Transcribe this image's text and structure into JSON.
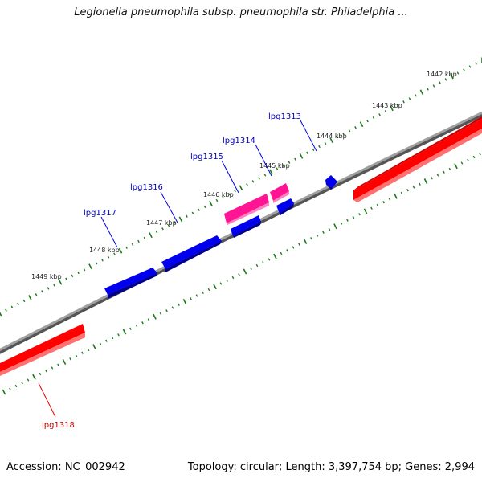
{
  "title": "Legionella pneumophila subsp. pneumophila str. Philadelphia ...",
  "footer": {
    "accession": "Accession: NC_002942",
    "summary": "Topology: circular; Length: 3,397,754 bp; Genes: 2,994"
  },
  "colors": {
    "backbone": "#808080",
    "tick": "#1a7a1a",
    "gene_blue": "#0000ee",
    "gene_pink": "#ff1493",
    "gene_red": "#ff0000",
    "label_blue": "#0000bb",
    "label_red": "#cc0000"
  },
  "ticks": [
    "1442 kbp",
    "1443 kbp",
    "1444 kbp",
    "1445 kbp",
    "1446 kbp",
    "1447 kbp",
    "1448 kbp",
    "1449 kbp"
  ],
  "genes": [
    {
      "label": "lpg1313",
      "color": "blue"
    },
    {
      "label": "lpg1314",
      "color": "pink"
    },
    {
      "label": "lpg1315",
      "color": "blue"
    },
    {
      "label": "lpg1316",
      "color": "blue"
    },
    {
      "label": "lpg1317",
      "color": "blue"
    },
    {
      "label": "lpg1318",
      "color": "red"
    }
  ]
}
